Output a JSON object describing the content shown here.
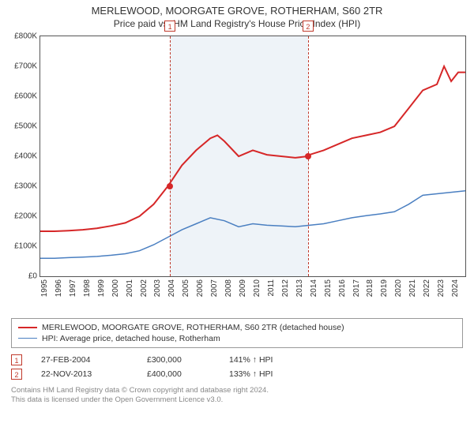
{
  "title": "MERLEWOOD, MOORGATE GROVE, ROTHERHAM, S60 2TR",
  "subtitle": "Price paid vs. HM Land Registry's House Price Index (HPI)",
  "chart": {
    "type": "line",
    "background_color": "#ffffff",
    "plot_border_color": "#555555",
    "shaded_region_color": "#eef3f8",
    "shaded_region_years": [
      2004.15,
      2013.9
    ],
    "xlim": [
      1995,
      2025
    ],
    "ylim": [
      0,
      800000
    ],
    "ytick_step": 100000,
    "yticks": [
      "£0",
      "£100K",
      "£200K",
      "£300K",
      "£400K",
      "£500K",
      "£600K",
      "£700K",
      "£800K"
    ],
    "xticks": [
      "1995",
      "1996",
      "1997",
      "1998",
      "1999",
      "2000",
      "2001",
      "2002",
      "2003",
      "2004",
      "2005",
      "2006",
      "2007",
      "2008",
      "2009",
      "2010",
      "2011",
      "2012",
      "2013",
      "2014",
      "2015",
      "2016",
      "2017",
      "2018",
      "2019",
      "2020",
      "2021",
      "2022",
      "2023",
      "2024"
    ],
    "marker_line_color": "#c0392b",
    "series": [
      {
        "name": "MERLEWOOD, MOORGATE GROVE, ROTHERHAM, S60 2TR (detached house)",
        "color": "#d62728",
        "line_width": 2,
        "data": [
          [
            1995,
            150000
          ],
          [
            1996,
            150000
          ],
          [
            1997,
            152000
          ],
          [
            1998,
            155000
          ],
          [
            1999,
            160000
          ],
          [
            2000,
            168000
          ],
          [
            2001,
            178000
          ],
          [
            2002,
            200000
          ],
          [
            2003,
            240000
          ],
          [
            2004,
            300000
          ],
          [
            2005,
            370000
          ],
          [
            2006,
            420000
          ],
          [
            2007,
            460000
          ],
          [
            2007.5,
            470000
          ],
          [
            2008,
            450000
          ],
          [
            2009,
            400000
          ],
          [
            2010,
            420000
          ],
          [
            2011,
            405000
          ],
          [
            2012,
            400000
          ],
          [
            2013,
            395000
          ],
          [
            2013.9,
            400000
          ],
          [
            2014,
            405000
          ],
          [
            2015,
            420000
          ],
          [
            2016,
            440000
          ],
          [
            2017,
            460000
          ],
          [
            2018,
            470000
          ],
          [
            2019,
            480000
          ],
          [
            2020,
            500000
          ],
          [
            2021,
            560000
          ],
          [
            2022,
            620000
          ],
          [
            2023,
            640000
          ],
          [
            2023.5,
            700000
          ],
          [
            2024,
            650000
          ],
          [
            2024.5,
            680000
          ],
          [
            2025,
            680000
          ]
        ]
      },
      {
        "name": "HPI: Average price, detached house, Rotherham",
        "color": "#4a7fc1",
        "line_width": 1.5,
        "data": [
          [
            1995,
            60000
          ],
          [
            1996,
            60000
          ],
          [
            1997,
            62000
          ],
          [
            1998,
            64000
          ],
          [
            1999,
            66000
          ],
          [
            2000,
            70000
          ],
          [
            2001,
            75000
          ],
          [
            2002,
            85000
          ],
          [
            2003,
            105000
          ],
          [
            2004,
            130000
          ],
          [
            2005,
            155000
          ],
          [
            2006,
            175000
          ],
          [
            2007,
            195000
          ],
          [
            2008,
            185000
          ],
          [
            2009,
            165000
          ],
          [
            2010,
            175000
          ],
          [
            2011,
            170000
          ],
          [
            2012,
            168000
          ],
          [
            2013,
            165000
          ],
          [
            2014,
            170000
          ],
          [
            2015,
            175000
          ],
          [
            2016,
            185000
          ],
          [
            2017,
            195000
          ],
          [
            2018,
            202000
          ],
          [
            2019,
            208000
          ],
          [
            2020,
            215000
          ],
          [
            2021,
            240000
          ],
          [
            2022,
            270000
          ],
          [
            2023,
            275000
          ],
          [
            2024,
            280000
          ],
          [
            2025,
            285000
          ]
        ]
      }
    ],
    "transactions": [
      {
        "n": "1",
        "year": 2004.15,
        "value": 300000,
        "date": "27-FEB-2004",
        "price": "£300,000",
        "pct": "141% ↑ HPI"
      },
      {
        "n": "2",
        "year": 2013.9,
        "value": 400000,
        "date": "22-NOV-2013",
        "price": "£400,000",
        "pct": "133% ↑ HPI"
      }
    ]
  },
  "footnote_line1": "Contains HM Land Registry data © Crown copyright and database right 2024.",
  "footnote_line2": "This data is licensed under the Open Government Licence v3.0."
}
